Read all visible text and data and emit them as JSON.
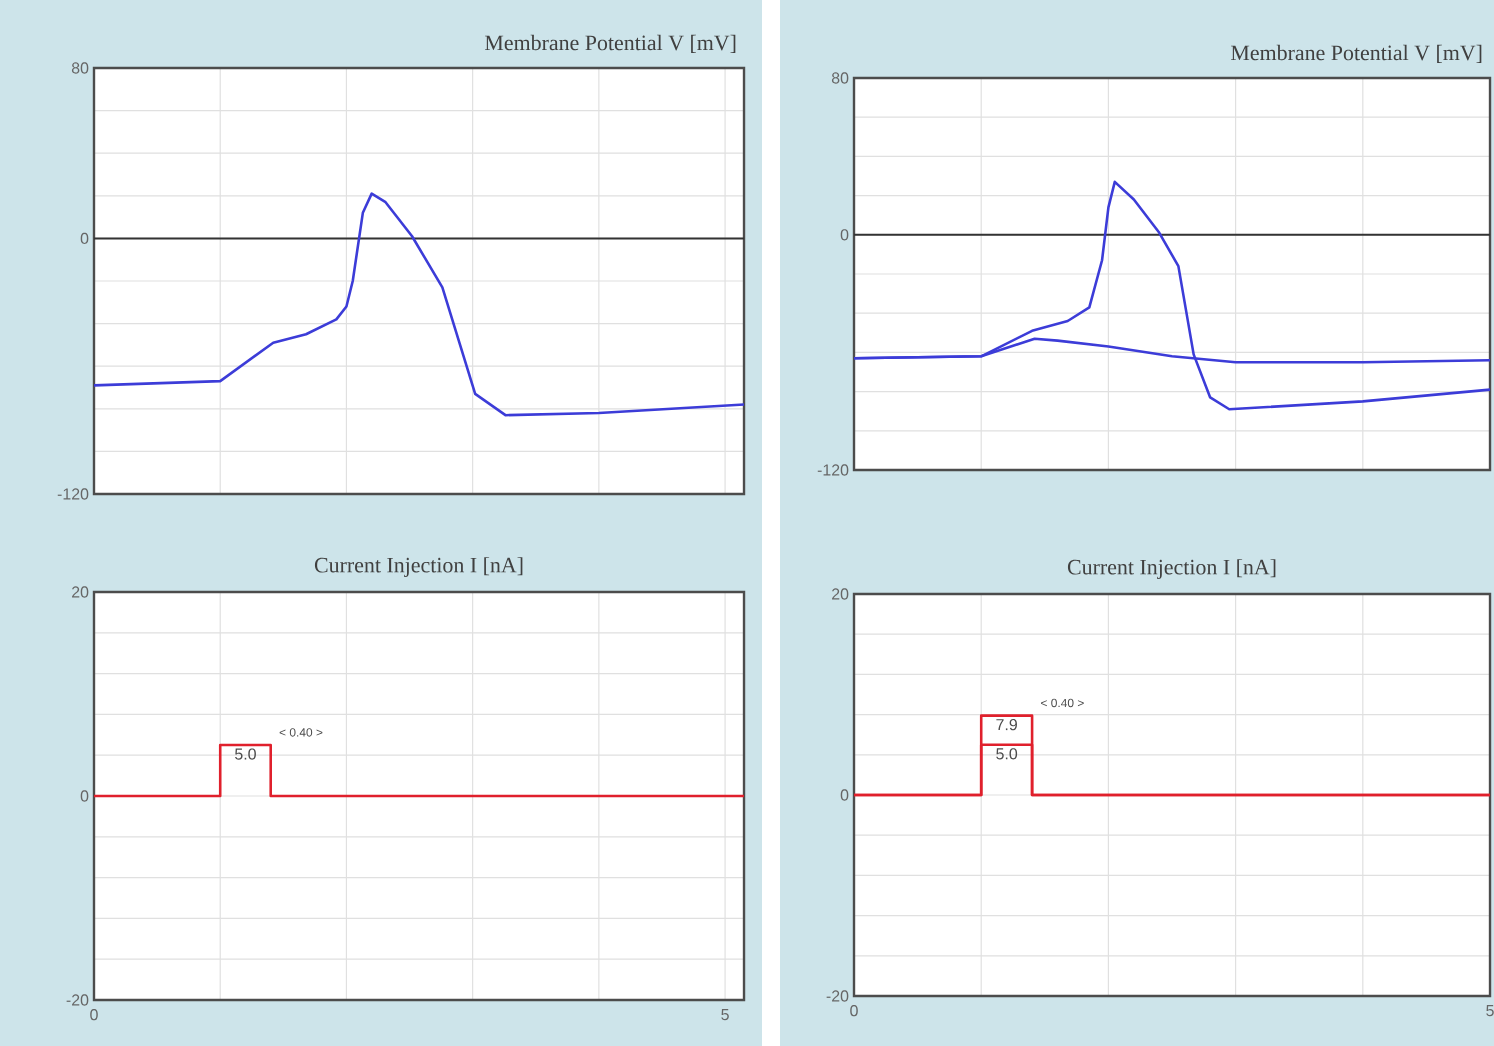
{
  "chart_data": [
    {
      "type": "line",
      "title": "Membrane Potential V [mV]",
      "xlim": [
        0,
        5.15
      ],
      "ylim": [
        -120,
        80
      ],
      "grid": true,
      "tick_labels": "y",
      "xticks": [
        0,
        {
          "value": 1,
          "label": null
        },
        {
          "value": 2,
          "label": null
        },
        {
          "value": 3,
          "label": null
        },
        {
          "value": 4,
          "label": null
        },
        5
      ],
      "yticks": [
        -120,
        {
          "value": -100,
          "label": null
        },
        {
          "value": -80,
          "label": null
        },
        {
          "value": -60,
          "label": null
        },
        {
          "value": -40,
          "label": null
        },
        {
          "value": -20,
          "label": null
        },
        0,
        {
          "value": 20,
          "label": null
        },
        {
          "value": 40,
          "label": null
        },
        {
          "value": 60,
          "label": null
        },
        80
      ],
      "ref_lines": [
        {
          "axis": "y",
          "value": 0,
          "color": "#333333"
        }
      ],
      "series": [
        {
          "color": "#3c3cd8",
          "x": [
            0,
            1,
            1.42,
            1.68,
            1.92,
            2.0,
            2.05,
            2.13,
            2.2,
            2.31,
            2.52,
            2.76,
            2.89,
            3.02,
            3.26,
            4.0,
            5.15
          ],
          "values": [
            -69,
            -67,
            -49,
            -45,
            -38,
            -32,
            -20,
            12,
            21,
            17,
            1,
            -23,
            -48,
            -73,
            -83,
            -82,
            -78
          ]
        }
      ]
    },
    {
      "type": "line",
      "title": "Membrane Potential V [mV]",
      "xlim": [
        0,
        5
      ],
      "ylim": [
        -120,
        80
      ],
      "grid": true,
      "tick_labels": "y",
      "xticks": [
        0,
        {
          "value": 1,
          "label": null
        },
        {
          "value": 2,
          "label": null
        },
        {
          "value": 3,
          "label": null
        },
        {
          "value": 4,
          "label": null
        },
        5
      ],
      "yticks": [
        -120,
        {
          "value": -100,
          "label": null
        },
        {
          "value": -80,
          "label": null
        },
        {
          "value": -60,
          "label": null
        },
        {
          "value": -40,
          "label": null
        },
        {
          "value": -20,
          "label": null
        },
        0,
        {
          "value": 20,
          "label": null
        },
        {
          "value": 40,
          "label": null
        },
        {
          "value": 60,
          "label": null
        },
        80
      ],
      "ref_lines": [
        {
          "axis": "y",
          "value": 0,
          "color": "#333333"
        }
      ],
      "series": [
        {
          "color": "#3c3cd8",
          "x": [
            0,
            1,
            1.4,
            1.68,
            1.85,
            1.95,
            2.0,
            2.05,
            2.2,
            2.4,
            2.55,
            2.67,
            2.8,
            2.95,
            4.0,
            5.0
          ],
          "values": [
            -63,
            -62,
            -49,
            -44,
            -37,
            -13,
            14,
            27,
            18,
            1,
            -16,
            -61,
            -83,
            -89,
            -85,
            -79
          ]
        },
        {
          "color": "#3c3cd8",
          "x": [
            0,
            1,
            1.42,
            1.6,
            2.0,
            2.5,
            3.0,
            4.0,
            5.0
          ],
          "values": [
            -63,
            -62,
            -53,
            -54,
            -57,
            -62,
            -65,
            -65,
            -64
          ]
        }
      ]
    },
    {
      "type": "step",
      "title": "Current Injection I [nA]",
      "xlim": [
        0,
        5.15
      ],
      "ylim": [
        -20,
        20
      ],
      "grid": true,
      "xticks": [
        0,
        {
          "value": 1,
          "label": null
        },
        {
          "value": 2,
          "label": null
        },
        {
          "value": 3,
          "label": null
        },
        {
          "value": 4,
          "label": null
        },
        5
      ],
      "yticks": [
        -20,
        {
          "value": -16,
          "label": null
        },
        {
          "value": -12,
          "label": null
        },
        {
          "value": -8,
          "label": null
        },
        {
          "value": -4,
          "label": null
        },
        0,
        {
          "value": 4,
          "label": null
        },
        {
          "value": 8,
          "label": null
        },
        {
          "value": 12,
          "label": null
        },
        {
          "value": 16,
          "label": null
        },
        20
      ],
      "annotations": [
        {
          "text": "< 0.40 >",
          "x": 1.4,
          "y": 5
        }
      ],
      "series": [
        {
          "color": "#e0202c",
          "x": [
            0,
            1,
            1.4,
            5.15
          ],
          "values": [
            0,
            5,
            0,
            0
          ],
          "value_labels": [
            null,
            "5.0",
            null,
            null
          ]
        }
      ]
    },
    {
      "type": "step",
      "title": "Current Injection I [nA]",
      "xlim": [
        0,
        5
      ],
      "ylim": [
        -20,
        20
      ],
      "grid": true,
      "xticks": [
        0,
        {
          "value": 1,
          "label": null
        },
        {
          "value": 2,
          "label": null
        },
        {
          "value": 3,
          "label": null
        },
        {
          "value": 4,
          "label": null
        },
        5
      ],
      "yticks": [
        -20,
        {
          "value": -16,
          "label": null
        },
        {
          "value": -12,
          "label": null
        },
        {
          "value": -8,
          "label": null
        },
        {
          "value": -4,
          "label": null
        },
        0,
        {
          "value": 4,
          "label": null
        },
        {
          "value": 8,
          "label": null
        },
        {
          "value": 12,
          "label": null
        },
        {
          "value": 16,
          "label": null
        },
        20
      ],
      "annotations": [
        {
          "text": "< 0.40 >",
          "x": 1.4,
          "y": 7.9
        }
      ],
      "series": [
        {
          "color": "#e0202c",
          "x": [
            0,
            1,
            1.4,
            5.0
          ],
          "values": [
            0,
            7.9,
            0,
            0
          ],
          "value_labels": [
            null,
            "7.9",
            null,
            null
          ]
        },
        {
          "color": "#e0202c",
          "x": [
            0,
            1,
            1.4,
            5.0
          ],
          "values": [
            0,
            5,
            0,
            0
          ],
          "value_labels": [
            null,
            "5.0",
            null,
            null
          ]
        }
      ]
    }
  ]
}
